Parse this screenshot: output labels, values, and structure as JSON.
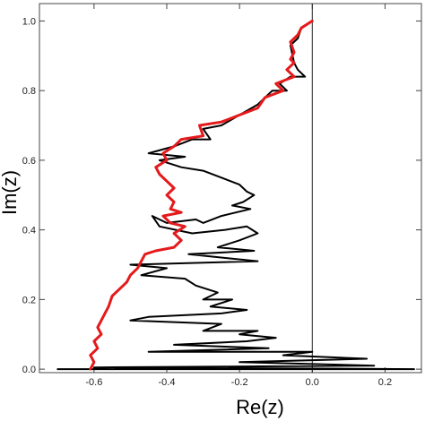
{
  "chart_data": {
    "type": "line",
    "xlabel": "Re(z)",
    "ylabel": "Im(z)",
    "xlim": [
      -0.75,
      0.3
    ],
    "ylim": [
      -0.01,
      1.05
    ],
    "grid": false,
    "frame": true,
    "x_ticks": [
      -0.6,
      -0.4,
      -0.2,
      0.0,
      0.2
    ],
    "x_tick_labels": [
      "-0.6",
      "-0.4",
      "-0.2",
      "0.0",
      "0.2"
    ],
    "y_ticks": [
      0.0,
      0.2,
      0.4,
      0.6,
      0.8,
      1.0
    ],
    "y_tick_labels": [
      "0.0",
      "0.2",
      "0.4",
      "0.6",
      "0.8",
      "1.0"
    ],
    "vertical_reference_line_x": 0.0,
    "series": [
      {
        "color": "#000000",
        "line_width": 2,
        "points": [
          [
            0.0,
            1.0
          ],
          [
            -0.03,
            0.98
          ],
          [
            -0.04,
            0.95
          ],
          [
            -0.06,
            0.93
          ],
          [
            -0.05,
            0.88
          ],
          [
            -0.04,
            0.86
          ],
          [
            -0.02,
            0.84
          ],
          [
            -0.06,
            0.84
          ],
          [
            -0.09,
            0.82
          ],
          [
            -0.07,
            0.8
          ],
          [
            -0.11,
            0.8
          ],
          [
            -0.15,
            0.76
          ],
          [
            -0.2,
            0.73
          ],
          [
            -0.25,
            0.7
          ],
          [
            -0.3,
            0.69
          ],
          [
            -0.28,
            0.66
          ],
          [
            -0.33,
            0.66
          ],
          [
            -0.38,
            0.64
          ],
          [
            -0.45,
            0.62
          ],
          [
            -0.35,
            0.61
          ],
          [
            -0.42,
            0.6
          ],
          [
            -0.36,
            0.58
          ],
          [
            -0.3,
            0.57
          ],
          [
            -0.25,
            0.55
          ],
          [
            -0.2,
            0.53
          ],
          [
            -0.18,
            0.51
          ],
          [
            -0.16,
            0.5
          ],
          [
            -0.19,
            0.48
          ],
          [
            -0.22,
            0.47
          ],
          [
            -0.17,
            0.46
          ],
          [
            -0.25,
            0.44
          ],
          [
            -0.3,
            0.42
          ],
          [
            -0.32,
            0.43
          ],
          [
            -0.4,
            0.42
          ],
          [
            -0.44,
            0.44
          ],
          [
            -0.42,
            0.41
          ],
          [
            -0.33,
            0.39
          ],
          [
            -0.24,
            0.4
          ],
          [
            -0.18,
            0.41
          ],
          [
            -0.15,
            0.39
          ],
          [
            -0.2,
            0.37
          ],
          [
            -0.26,
            0.35
          ],
          [
            -0.16,
            0.34
          ],
          [
            -0.34,
            0.33
          ],
          [
            -0.15,
            0.31
          ],
          [
            -0.5,
            0.3
          ],
          [
            -0.4,
            0.29
          ],
          [
            -0.47,
            0.27
          ],
          [
            -0.35,
            0.26
          ],
          [
            -0.32,
            0.24
          ],
          [
            -0.26,
            0.22
          ],
          [
            -0.3,
            0.2
          ],
          [
            -0.22,
            0.2
          ],
          [
            -0.28,
            0.18
          ],
          [
            -0.18,
            0.17
          ],
          [
            -0.25,
            0.16
          ],
          [
            -0.45,
            0.15
          ],
          [
            -0.5,
            0.14
          ],
          [
            -0.25,
            0.13
          ],
          [
            -0.3,
            0.11
          ],
          [
            -0.15,
            0.11
          ],
          [
            -0.2,
            0.1
          ],
          [
            -0.1,
            0.09
          ],
          [
            -0.18,
            0.08
          ],
          [
            -0.38,
            0.07
          ],
          [
            -0.12,
            0.06
          ],
          [
            -0.45,
            0.05
          ],
          [
            0.0,
            0.05
          ],
          [
            -0.08,
            0.04
          ],
          [
            0.15,
            0.03
          ],
          [
            -0.2,
            0.02
          ],
          [
            0.17,
            0.01
          ],
          [
            -0.6,
            0.005
          ],
          [
            0.28,
            0.0
          ],
          [
            -0.7,
            0.0
          ]
        ]
      },
      {
        "color": "#e41a1c",
        "line_width": 3,
        "points": [
          [
            0.0,
            1.0
          ],
          [
            -0.03,
            0.98
          ],
          [
            -0.04,
            0.96
          ],
          [
            -0.06,
            0.94
          ],
          [
            -0.05,
            0.91
          ],
          [
            -0.06,
            0.89
          ],
          [
            -0.05,
            0.88
          ],
          [
            -0.07,
            0.86
          ],
          [
            -0.05,
            0.84
          ],
          [
            -0.1,
            0.82
          ],
          [
            -0.08,
            0.8
          ],
          [
            -0.13,
            0.78
          ],
          [
            -0.15,
            0.75
          ],
          [
            -0.2,
            0.73
          ],
          [
            -0.25,
            0.71
          ],
          [
            -0.31,
            0.7
          ],
          [
            -0.3,
            0.67
          ],
          [
            -0.36,
            0.66
          ],
          [
            -0.38,
            0.64
          ],
          [
            -0.41,
            0.62
          ],
          [
            -0.4,
            0.6
          ],
          [
            -0.43,
            0.58
          ],
          [
            -0.42,
            0.56
          ],
          [
            -0.4,
            0.54
          ],
          [
            -0.38,
            0.52
          ],
          [
            -0.4,
            0.5
          ],
          [
            -0.38,
            0.48
          ],
          [
            -0.39,
            0.46
          ],
          [
            -0.36,
            0.45
          ],
          [
            -0.41,
            0.44
          ],
          [
            -0.39,
            0.42
          ],
          [
            -0.35,
            0.41
          ],
          [
            -0.38,
            0.39
          ],
          [
            -0.36,
            0.37
          ],
          [
            -0.38,
            0.35
          ],
          [
            -0.43,
            0.34
          ],
          [
            -0.46,
            0.33
          ],
          [
            -0.47,
            0.31
          ],
          [
            -0.48,
            0.29
          ],
          [
            -0.5,
            0.27
          ],
          [
            -0.51,
            0.25
          ],
          [
            -0.53,
            0.23
          ],
          [
            -0.55,
            0.21
          ],
          [
            -0.56,
            0.18
          ],
          [
            -0.57,
            0.16
          ],
          [
            -0.58,
            0.14
          ],
          [
            -0.59,
            0.12
          ],
          [
            -0.58,
            0.1
          ],
          [
            -0.6,
            0.08
          ],
          [
            -0.59,
            0.06
          ],
          [
            -0.61,
            0.04
          ],
          [
            -0.6,
            0.02
          ],
          [
            -0.61,
            0.0
          ]
        ]
      }
    ]
  }
}
